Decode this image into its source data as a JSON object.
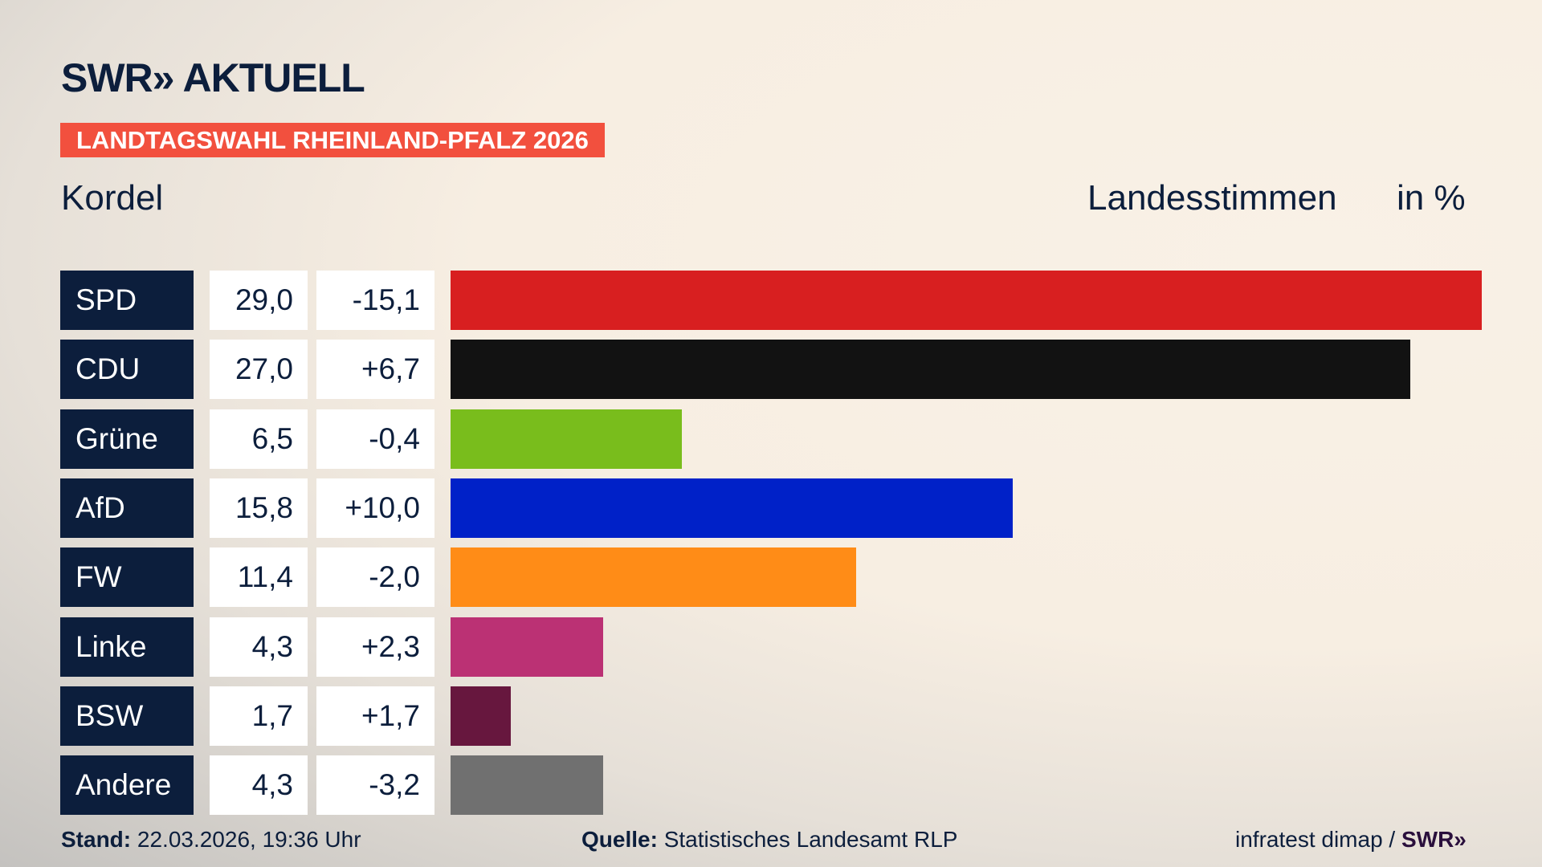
{
  "header": {
    "logo": "SWR» AKTUELL",
    "banner": "LANDTAGSWAHL RHEINLAND-PFALZ 2026",
    "region": "Kordel",
    "measure": "Landesstimmen",
    "unit": "in %"
  },
  "chart_data": {
    "type": "bar",
    "orientation": "horizontal",
    "categories": [
      "SPD",
      "CDU",
      "Grüne",
      "AfD",
      "FW",
      "Linke",
      "BSW",
      "Andere"
    ],
    "values": [
      29.0,
      27.0,
      6.5,
      15.8,
      11.4,
      4.3,
      1.7,
      4.3
    ],
    "value_labels": [
      "29,0",
      "27,0",
      "6,5",
      "15,8",
      "11,4",
      "4,3",
      "1,7",
      "4,3"
    ],
    "diff_labels": [
      "-15,1",
      "+6,7",
      "-0,4",
      "+10,0",
      "-2,0",
      "+2,3",
      "+1,7",
      "-3,2"
    ],
    "colors": [
      "#d81f20",
      "#121212",
      "#79bd1c",
      "#0021c8",
      "#ff8c17",
      "#bb3174",
      "#67173e",
      "#707070"
    ],
    "xlim": [
      0,
      29.0
    ]
  },
  "footer": {
    "stand_label": "Stand:",
    "stand_value": "22.03.2026, 19:36 Uhr",
    "source_label": "Quelle:",
    "source_value": "Statistisches Landesamt RLP",
    "credit": "infratest dimap /",
    "credit_logo": "SWR»"
  }
}
